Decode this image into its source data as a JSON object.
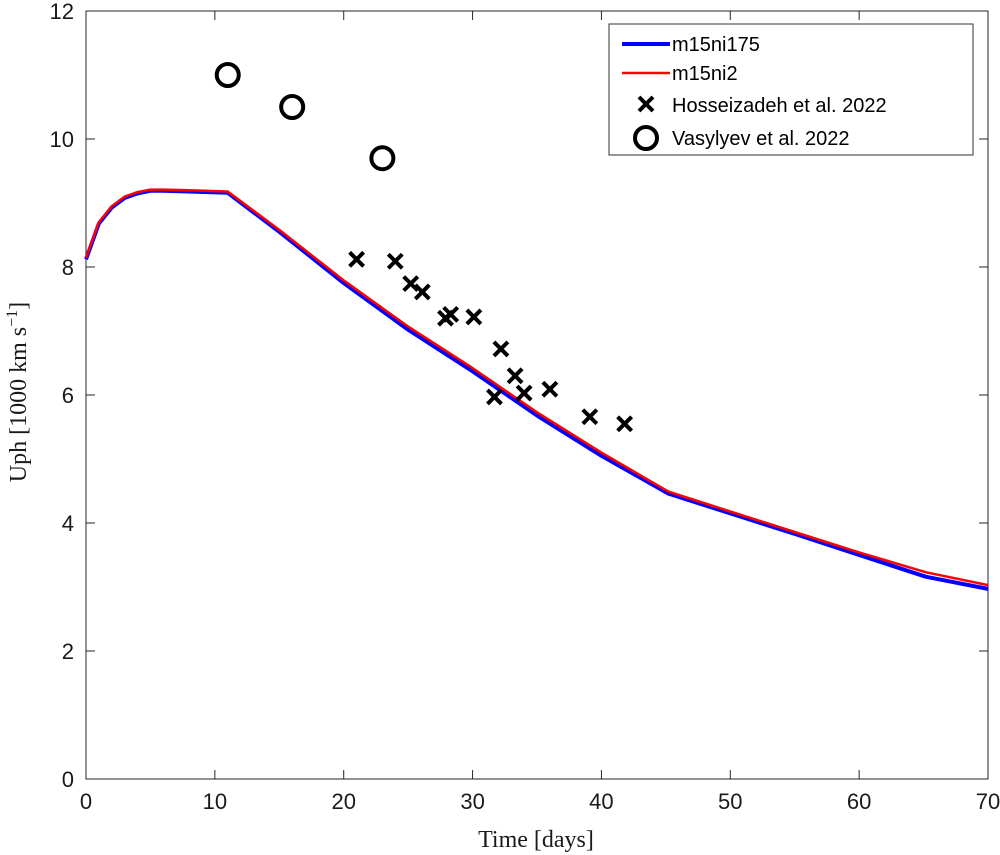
{
  "chart_data": {
    "type": "line",
    "xlabel": "Time [days]",
    "ylabel": "Uph [1000 km s",
    "ylabel_sup": "−1",
    "ylabel_close": "]",
    "xlim": [
      0,
      70
    ],
    "ylim": [
      0,
      12
    ],
    "xticks": [
      0,
      10,
      20,
      30,
      40,
      50,
      60,
      70
    ],
    "yticks": [
      0,
      2,
      4,
      6,
      8,
      10,
      12
    ],
    "grid": false,
    "legend_position": "top-right",
    "series": [
      {
        "name": "m15ni175",
        "kind": "line",
        "color": "#0000ff",
        "x": [
          0,
          1,
          2,
          3,
          4,
          5,
          6,
          8,
          11,
          15,
          20,
          25,
          30,
          35,
          40,
          45.2,
          50,
          55,
          60,
          65.2,
          70
        ],
        "y": [
          8.12,
          8.68,
          8.93,
          9.08,
          9.15,
          9.19,
          9.19,
          9.18,
          9.16,
          8.55,
          7.75,
          7.02,
          6.37,
          5.68,
          5.05,
          4.46,
          4.15,
          3.83,
          3.5,
          3.16,
          2.97
        ]
      },
      {
        "name": "m15ni2",
        "kind": "line",
        "color": "#ff0000",
        "x": [
          0,
          1,
          2,
          3,
          4,
          5,
          6,
          8,
          11,
          15,
          20,
          25,
          30,
          35,
          40,
          45.2,
          50,
          55,
          60,
          65.2,
          70
        ],
        "y": [
          8.14,
          8.7,
          8.95,
          9.1,
          9.17,
          9.21,
          9.21,
          9.2,
          9.18,
          8.58,
          7.79,
          7.07,
          6.42,
          5.73,
          5.1,
          4.49,
          4.18,
          3.86,
          3.54,
          3.23,
          3.03
        ]
      },
      {
        "name": "Hosseizadeh et al. 2022",
        "kind": "scatter",
        "marker": "x",
        "color": "#000000",
        "x": [
          21.0,
          24.0,
          25.2,
          26.1,
          27.9,
          28.3,
          30.1,
          31.7,
          32.2,
          33.3,
          34.0,
          36.0,
          39.1,
          41.8
        ],
        "y": [
          8.12,
          8.09,
          7.74,
          7.61,
          7.2,
          7.26,
          7.22,
          5.97,
          6.72,
          6.3,
          6.03,
          6.09,
          5.66,
          5.55
        ]
      },
      {
        "name": "Vasylyev et al. 2022",
        "kind": "scatter",
        "marker": "o",
        "color": "#000000",
        "x": [
          11.0,
          16.0,
          23.0
        ],
        "y": [
          11.0,
          10.5,
          9.7
        ]
      }
    ]
  }
}
